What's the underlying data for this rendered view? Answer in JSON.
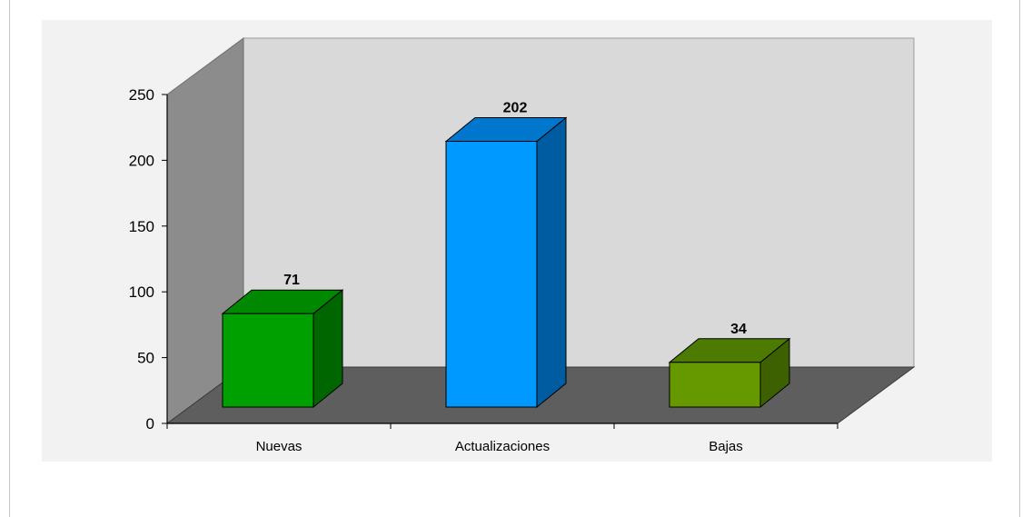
{
  "chart_data": {
    "type": "bar",
    "categories": [
      "Nuevas",
      "Actualizaciones",
      "Bajas"
    ],
    "values": [
      71,
      202,
      34
    ],
    "data_labels": [
      "71",
      "202",
      "34"
    ],
    "ylim": [
      0,
      250
    ],
    "yticks": [
      0,
      50,
      100,
      150,
      200,
      250
    ],
    "ytick_labels": [
      "0",
      "50",
      "100",
      "150",
      "200",
      "250"
    ],
    "title": "",
    "xlabel": "",
    "ylabel": "",
    "style": "3d",
    "colors": {
      "bars": [
        {
          "front": "#00a000",
          "top": "#008800",
          "side": "#006600"
        },
        {
          "front": "#0099ff",
          "top": "#0077cc",
          "side": "#005ca0"
        },
        {
          "front": "#669900",
          "top": "#4d7a00",
          "side": "#3d6100"
        }
      ],
      "back_wall": "#d9d9d9",
      "side_wall": "#8c8c8c",
      "floor": "#5e5e5e"
    }
  }
}
